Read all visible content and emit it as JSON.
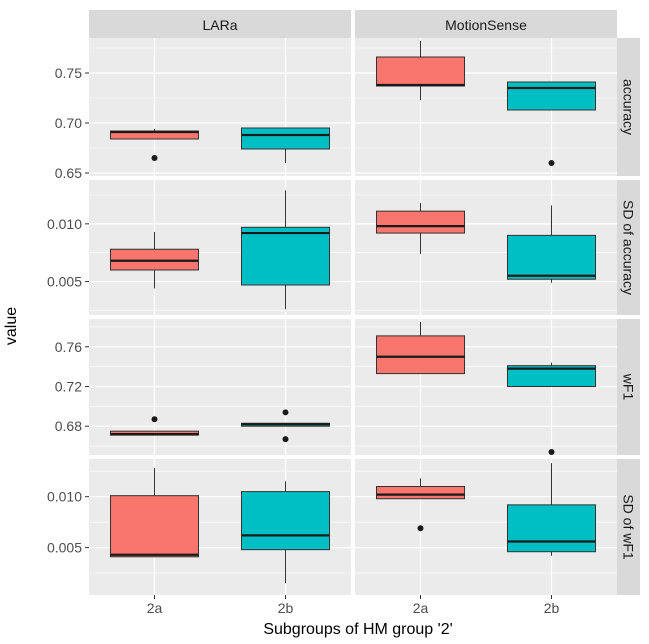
{
  "chart_data": {
    "type": "boxplot",
    "xlabel": "Subgroups of HM group '2'",
    "ylabel": "value",
    "columns": [
      "LARa",
      "MotionSense"
    ],
    "categories": [
      "2a",
      "2b"
    ],
    "fill_colors": {
      "2a": "#F8766D",
      "2b": "#00BFC4"
    },
    "grid": true,
    "legend": "none",
    "rows": [
      {
        "label": "accuracy",
        "ylim": [
          0.647,
          0.785
        ],
        "yticks": [
          0.65,
          0.7,
          0.75
        ],
        "ytick_labels": [
          "0.65",
          "0.70",
          "0.75"
        ],
        "boxes": [
          {
            "panel": "LARa",
            "category": "2a",
            "min": 0.684,
            "q1": 0.684,
            "median": 0.691,
            "q3": 0.692,
            "max": 0.694,
            "outliers": [
              0.665
            ]
          },
          {
            "panel": "LARa",
            "category": "2b",
            "min": 0.66,
            "q1": 0.674,
            "median": 0.688,
            "q3": 0.695,
            "max": 0.695,
            "outliers": []
          },
          {
            "panel": "MotionSense",
            "category": "2a",
            "min": 0.723,
            "q1": 0.737,
            "median": 0.738,
            "q3": 0.766,
            "max": 0.782,
            "outliers": []
          },
          {
            "panel": "MotionSense",
            "category": "2b",
            "min": 0.713,
            "q1": 0.713,
            "median": 0.735,
            "q3": 0.741,
            "max": 0.741,
            "outliers": [
              0.66
            ]
          }
        ]
      },
      {
        "label": "SD of accuracy",
        "ylim": [
          0.0021,
          0.0138
        ],
        "yticks": [
          0.005,
          0.01
        ],
        "ytick_labels": [
          "0.005",
          "0.010"
        ],
        "boxes": [
          {
            "panel": "LARa",
            "category": "2a",
            "min": 0.0044,
            "q1": 0.006,
            "median": 0.0068,
            "q3": 0.0078,
            "max": 0.0093,
            "outliers": []
          },
          {
            "panel": "LARa",
            "category": "2b",
            "min": 0.0026,
            "q1": 0.0047,
            "median": 0.0092,
            "q3": 0.0097,
            "max": 0.0129,
            "outliers": []
          },
          {
            "panel": "MotionSense",
            "category": "2a",
            "min": 0.0074,
            "q1": 0.0092,
            "median": 0.0098,
            "q3": 0.0111,
            "max": 0.0118,
            "outliers": []
          },
          {
            "panel": "MotionSense",
            "category": "2b",
            "min": 0.0049,
            "q1": 0.0052,
            "median": 0.0055,
            "q3": 0.009,
            "max": 0.0116,
            "outliers": []
          }
        ]
      },
      {
        "label": "wF1",
        "ylim": [
          0.651,
          0.788
        ],
        "yticks": [
          0.68,
          0.72,
          0.76
        ],
        "ytick_labels": [
          "0.68",
          "0.72",
          "0.76"
        ],
        "boxes": [
          {
            "panel": "LARa",
            "category": "2a",
            "min": 0.671,
            "q1": 0.671,
            "median": 0.672,
            "q3": 0.675,
            "max": 0.675,
            "outliers": [
              0.687
            ]
          },
          {
            "panel": "LARa",
            "category": "2b",
            "min": 0.68,
            "q1": 0.68,
            "median": 0.682,
            "q3": 0.683,
            "max": 0.683,
            "outliers": [
              0.694,
              0.667
            ]
          },
          {
            "panel": "MotionSense",
            "category": "2a",
            "min": 0.733,
            "q1": 0.733,
            "median": 0.75,
            "q3": 0.771,
            "max": 0.785,
            "outliers": []
          },
          {
            "panel": "MotionSense",
            "category": "2b",
            "min": 0.72,
            "q1": 0.72,
            "median": 0.738,
            "q3": 0.741,
            "max": 0.744,
            "outliers": [
              0.654
            ]
          }
        ]
      },
      {
        "label": "SD of wF1",
        "ylim": [
          0.00035,
          0.0137
        ],
        "yticks": [
          0.005,
          0.01
        ],
        "ytick_labels": [
          "0.005",
          "0.010"
        ],
        "boxes": [
          {
            "panel": "LARa",
            "category": "2a",
            "min": 0.0041,
            "q1": 0.0041,
            "median": 0.0043,
            "q3": 0.0101,
            "max": 0.0128,
            "outliers": []
          },
          {
            "panel": "LARa",
            "category": "2b",
            "min": 0.0015,
            "q1": 0.0048,
            "median": 0.0062,
            "q3": 0.0105,
            "max": 0.0115,
            "outliers": []
          },
          {
            "panel": "MotionSense",
            "category": "2a",
            "min": 0.0098,
            "q1": 0.0098,
            "median": 0.0102,
            "q3": 0.011,
            "max": 0.0118,
            "outliers": [
              0.0069
            ]
          },
          {
            "panel": "MotionSense",
            "category": "2b",
            "min": 0.0042,
            "q1": 0.0046,
            "median": 0.0056,
            "q3": 0.0092,
            "max": 0.0133,
            "outliers": []
          }
        ]
      }
    ]
  }
}
